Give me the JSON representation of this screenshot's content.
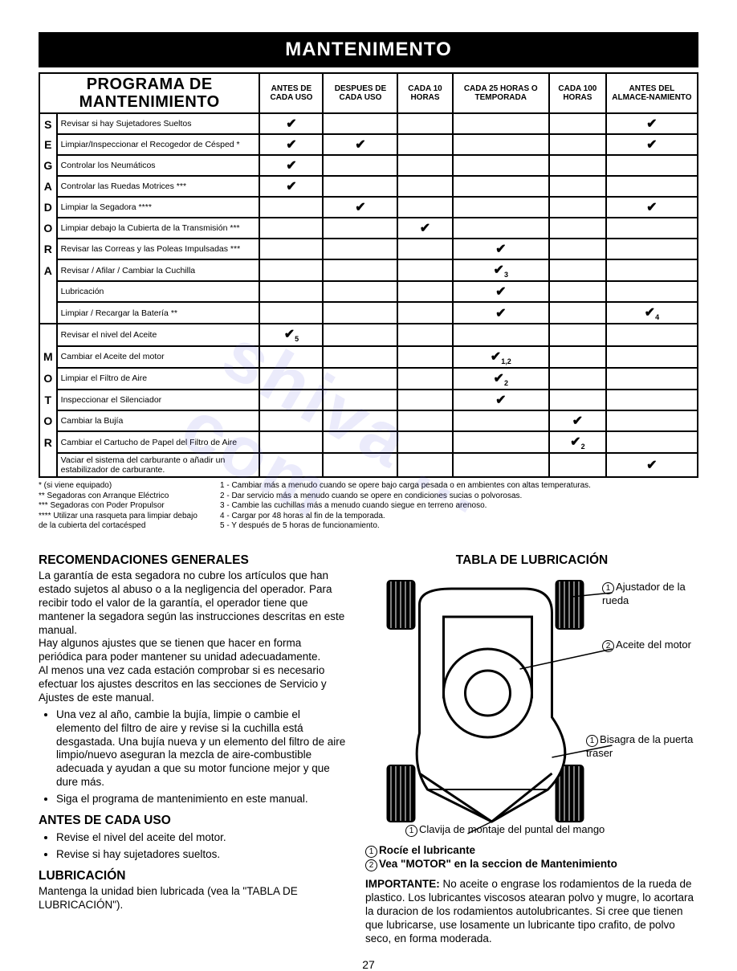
{
  "title": "MANTENIMENTO",
  "table": {
    "programHeader": "PROGRAMA DE MANTENIMIENTO",
    "colHeaders": [
      "ANTES DE CADA USO",
      "DESPUES DE CADA USO",
      "CADA 10 HORAS",
      "CADA 25 HORAS O TEMPORADA",
      "CADA 100 HORAS",
      "ANTES DEL ALMACE-NAMIENTO"
    ],
    "sideWords": [
      "SEGADORA",
      "MOTOR"
    ],
    "groups": [
      {
        "letters": [
          "S",
          "E",
          "G",
          "A",
          "D",
          "O",
          "R",
          "A",
          ""
        ],
        "rows": [
          {
            "task": "Revisar si hay Sujetadores Sueltos",
            "checks": [
              "✔",
              "",
              "",
              "",
              "",
              "✔"
            ]
          },
          {
            "task": "Limpiar/Inspeccionar el Recogedor de Césped *",
            "checks": [
              "✔",
              "✔",
              "",
              "",
              "",
              "✔"
            ]
          },
          {
            "task": "Controlar los Neumáticos",
            "checks": [
              "✔",
              "",
              "",
              "",
              "",
              ""
            ]
          },
          {
            "task": "Controlar las Ruedas Motrices ***",
            "checks": [
              "✔",
              "",
              "",
              "",
              "",
              ""
            ]
          },
          {
            "task": "Limpiar la Segadora ****",
            "checks": [
              "",
              "✔",
              "",
              "",
              "",
              "✔"
            ]
          },
          {
            "task": "Limpiar debajo la Cubierta de la Transmisión ***",
            "checks": [
              "",
              "",
              "✔",
              "",
              "",
              ""
            ]
          },
          {
            "task": "Revisar las Correas y las Poleas Impulsadas ***",
            "checks": [
              "",
              "",
              "",
              "✔",
              "",
              ""
            ]
          },
          {
            "task": "Revisar / Afilar / Cambiar la Cuchilla",
            "checks": [
              "",
              "",
              "",
              "✔3",
              "",
              ""
            ]
          },
          {
            "task": "Lubricación",
            "checks": [
              "",
              "",
              "",
              "✔",
              "",
              ""
            ]
          },
          {
            "task": "Limpiar / Recargar la Batería **",
            "checks": [
              "",
              "",
              "",
              "✔",
              "",
              "✔4"
            ]
          }
        ]
      },
      {
        "letters": [
          "",
          "M",
          "O",
          "T",
          "O",
          "R",
          ""
        ],
        "rows": [
          {
            "task": "Revisar el nivel del Aceite",
            "checks": [
              "✔5",
              "",
              "",
              "",
              "",
              ""
            ]
          },
          {
            "task": "Cambiar el Aceite del motor",
            "checks": [
              "",
              "",
              "",
              "✔1,2",
              "",
              ""
            ]
          },
          {
            "task": "Limpiar el Filtro de Aire",
            "checks": [
              "",
              "",
              "",
              "✔2",
              "",
              ""
            ]
          },
          {
            "task": "Inspeccionar el Silenciador",
            "checks": [
              "",
              "",
              "",
              "✔",
              "",
              ""
            ]
          },
          {
            "task": "Cambiar la Bujía",
            "checks": [
              "",
              "",
              "",
              "",
              "✔",
              ""
            ]
          },
          {
            "task": "Cambiar el Cartucho de Papel del Filtro de Aire",
            "checks": [
              "",
              "",
              "",
              "",
              "✔2",
              ""
            ]
          },
          {
            "task": "Vaciar el sistema del carburante o añadir un estabilizador de carburante.",
            "checks": [
              "",
              "",
              "",
              "",
              "",
              "✔"
            ]
          }
        ]
      }
    ]
  },
  "footnotes": {
    "left": [
      "* (si viene equipado)",
      "** Segadoras con Arranque Eléctrico",
      "*** Segadoras con Poder Propulsor",
      "**** Utilizar una rasqueta para limpiar debajo de la cubierta del cortacésped"
    ],
    "right": [
      "1 - Cambiar más a menudo cuando se opere bajo carga pesada o en ambientes con altas temperaturas.",
      "2 - Dar servicio más a menudo cuando se opere en condiciones sucias o polvorosas.",
      "3 - Cambie las cuchillas más a menudo cuando siegue en terreno arenoso.",
      "4 - Cargar por 48 horas al fin de la temporada.",
      "5 - Y después de 5 horas de funcionamiento."
    ]
  },
  "leftCol": {
    "h1": "RECOMENDACIONES GENERALES",
    "p1": "La garantía de esta segadora no cubre los artículos que han estado sujetos al abuso o a la negligencia del operador. Para recibir todo el valor de la garantía, el operador tiene que mantener la segadora según las instrucciones descritas en este manual.",
    "p2": "Hay algunos ajustes que se tienen que hacer en forma periódica para poder mantener su unidad adecuadamente.",
    "p3": "Al menos una vez cada estación comprobar si es necesario efectuar los ajustes descritos en las secciones de Servicio y Ajustes de este manual.",
    "bullets": [
      "Una vez al año, cambie la bujía, limpie o cambie el elemento del filtro de aire y revise si la cuchilla está desgastada. Una bujía nueva y un elemento del filtro de aire limpio/nuevo aseguran la mezcla de aire-combustible adecuada y ayudan a que su motor funcione mejor y que dure más.",
      "Siga el programa de mantenimiento en este manual."
    ],
    "h2": "ANTES DE CADA USO",
    "bullets2": [
      "Revise el nivel del aceite del motor.",
      "Revise si hay sujetadores sueltos."
    ],
    "h3": "LUBRICACIÓN",
    "p4": "Mantenga la unidad bien lubricada (vea la \"TABLA DE LUBRICACIÓN\")."
  },
  "rightCol": {
    "h1": "TABLA DE LUBRICACIÓN",
    "callouts": {
      "adjuster": {
        "num": "1",
        "text": "Ajustador de la rueda"
      },
      "oil": {
        "num": "2",
        "text": "Aceite del motor"
      },
      "hinge": {
        "num": "1",
        "text": "Bisagra de la puerta traser"
      },
      "pin": {
        "num": "1",
        "text": "Clavija de montaje del puntal del mango"
      }
    },
    "legend1": {
      "num": "1",
      "text": "Rocíe el lubricante"
    },
    "legend2": {
      "num": "2",
      "text": "Vea \"MOTOR\" en la seccion de Mantenimiento"
    },
    "importanteLabel": "IMPORTANTE:",
    "importante": " No aceite o engrase los rodamientos de la rueda de plastico. Los lubricantes viscosos atearan polvo y mugre, lo acortara la duracion de los rodamientos autolubricantes. Si cree que tienen que lubricarse, use losamente un lubricante tipo crafito, de polvo seco, en forma moderada."
  },
  "pageNumber": "27",
  "watermark": "shiva ... com",
  "diagram": {
    "bodyStroke": "#000",
    "bodyFill": "#fff",
    "wheelFill": "#000",
    "wheelHatch": "#fff"
  }
}
